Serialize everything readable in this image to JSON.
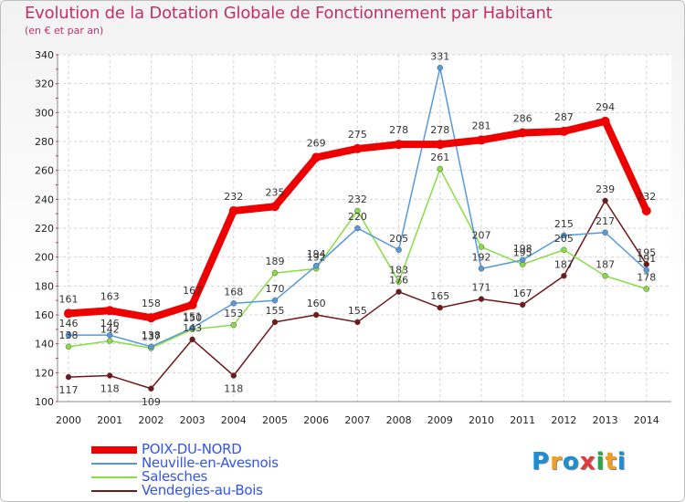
{
  "chart_data": {
    "type": "line",
    "title": "Evolution de la Dotation Globale de Fonctionnement par Habitant",
    "subtitle": "(en € et par an)",
    "x": [
      "2000",
      "2001",
      "2002",
      "2003",
      "2004",
      "2005",
      "2006",
      "2007",
      "2008",
      "2009",
      "2010",
      "2011",
      "2012",
      "2013",
      "2014"
    ],
    "ylim": [
      100,
      340
    ],
    "yticks": [
      100,
      120,
      140,
      160,
      180,
      200,
      220,
      240,
      260,
      280,
      300,
      320,
      340
    ],
    "grid": true,
    "series": [
      {
        "name": "Vendegies-au-Bois",
        "color": "#701818",
        "values": [
          117,
          118,
          109,
          143,
          118,
          155,
          160,
          155,
          176,
          165,
          171,
          167,
          187,
          239,
          195
        ]
      },
      {
        "name": "Salesches",
        "color": "#88dd44",
        "values": [
          138,
          142,
          137,
          150,
          153,
          189,
          192,
          232,
          183,
          261,
          207,
          195,
          205,
          187,
          178
        ]
      },
      {
        "name": "Neuville-en-Avesnois",
        "color": "#5599dd",
        "values": [
          146,
          146,
          138,
          151,
          168,
          170,
          194,
          220,
          205,
          331,
          192,
          198,
          215,
          217,
          191
        ]
      },
      {
        "name": "POIX-DU-NORD",
        "color": "#ee0000",
        "values": [
          161,
          163,
          158,
          167,
          232,
          235,
          269,
          275,
          278,
          278,
          281,
          286,
          287,
          294,
          232
        ]
      }
    ],
    "legend": "bottom-left"
  },
  "legend_items": [
    {
      "name": "POIX-DU-NORD",
      "color": "#ee0000",
      "label_color": "#3355ee"
    },
    {
      "name": "Neuville-en-Avesnois",
      "color": "#5599dd",
      "label_color": "#3355ee"
    },
    {
      "name": "Salesches",
      "color": "#88dd44",
      "label_color": "#3355ee"
    },
    {
      "name": "Vendegies-au-Bois",
      "color": "#701818",
      "label_color": "#3355ee"
    }
  ],
  "logo": {
    "letters": [
      "P",
      "r",
      "o",
      "x",
      "i",
      "t",
      "i"
    ],
    "colors": [
      "#1a8fd6",
      "#f0a020",
      "#1a8fd6",
      "#e03c3c",
      "#2aa84a",
      "#f0a020",
      "#1a8fd6"
    ]
  }
}
